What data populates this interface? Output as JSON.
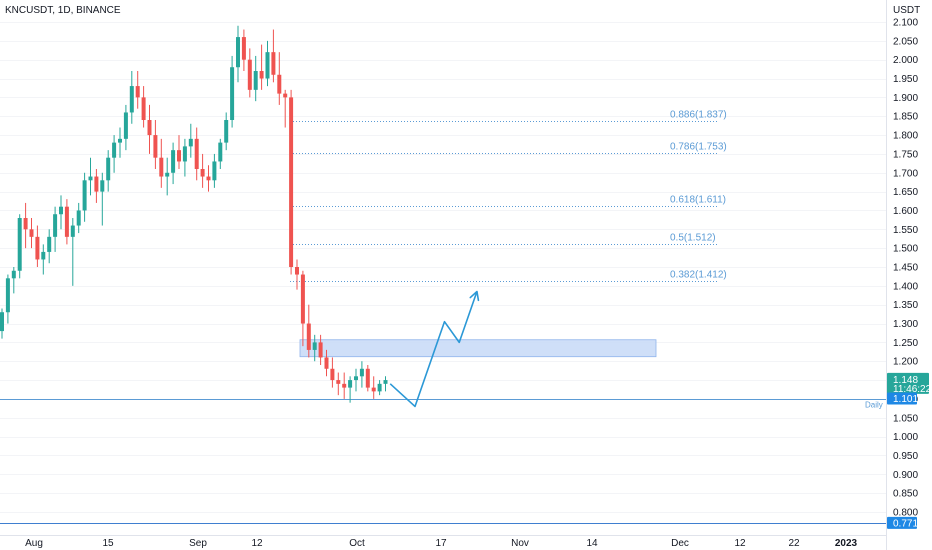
{
  "chart_data": {
    "type": "candlestick",
    "title": "KNCUSDT, 1D, BINANCE",
    "ylabel": "USDT",
    "ylim": [
      0.75,
      2.12
    ],
    "y_ticks": [
      "2.100",
      "2.050",
      "2.000",
      "1.950",
      "1.900",
      "1.850",
      "1.800",
      "1.750",
      "1.700",
      "1.650",
      "1.600",
      "1.550",
      "1.500",
      "1.450",
      "1.400",
      "1.350",
      "1.300",
      "1.250",
      "1.200",
      "1.150",
      "1.100",
      "1.050",
      "1.000",
      "0.950",
      "0.900",
      "0.850",
      "0.800"
    ],
    "x_ticks": [
      "Aug",
      "15",
      "Sep",
      "12",
      "Oct",
      "17",
      "Nov",
      "14",
      "Dec",
      "12",
      "22",
      "2023"
    ],
    "candles": [
      [
        1.28,
        1.34,
        1.26,
        1.33
      ],
      [
        1.33,
        1.43,
        1.3,
        1.42
      ],
      [
        1.42,
        1.45,
        1.38,
        1.44
      ],
      [
        1.44,
        1.59,
        1.42,
        1.58
      ],
      [
        1.58,
        1.62,
        1.5,
        1.55
      ],
      [
        1.55,
        1.58,
        1.5,
        1.53
      ],
      [
        1.53,
        1.56,
        1.45,
        1.47
      ],
      [
        1.47,
        1.51,
        1.43,
        1.49
      ],
      [
        1.49,
        1.55,
        1.46,
        1.53
      ],
      [
        1.53,
        1.61,
        1.49,
        1.59
      ],
      [
        1.59,
        1.64,
        1.55,
        1.61
      ],
      [
        1.61,
        1.63,
        1.51,
        1.53
      ],
      [
        1.53,
        1.58,
        1.4,
        1.56
      ],
      [
        1.56,
        1.62,
        1.54,
        1.6
      ],
      [
        1.6,
        1.7,
        1.57,
        1.68
      ],
      [
        1.68,
        1.74,
        1.64,
        1.69
      ],
      [
        1.69,
        1.71,
        1.62,
        1.65
      ],
      [
        1.65,
        1.7,
        1.56,
        1.68
      ],
      [
        1.68,
        1.76,
        1.65,
        1.74
      ],
      [
        1.74,
        1.8,
        1.7,
        1.78
      ],
      [
        1.78,
        1.82,
        1.74,
        1.79
      ],
      [
        1.79,
        1.88,
        1.76,
        1.86
      ],
      [
        1.86,
        1.97,
        1.83,
        1.93
      ],
      [
        1.93,
        1.97,
        1.87,
        1.9
      ],
      [
        1.9,
        1.93,
        1.82,
        1.84
      ],
      [
        1.84,
        1.88,
        1.75,
        1.8
      ],
      [
        1.8,
        1.84,
        1.71,
        1.74
      ],
      [
        1.74,
        1.79,
        1.66,
        1.69
      ],
      [
        1.69,
        1.74,
        1.64,
        1.7
      ],
      [
        1.7,
        1.78,
        1.67,
        1.76
      ],
      [
        1.76,
        1.8,
        1.71,
        1.73
      ],
      [
        1.73,
        1.79,
        1.69,
        1.77
      ],
      [
        1.77,
        1.83,
        1.74,
        1.79
      ],
      [
        1.79,
        1.82,
        1.68,
        1.71
      ],
      [
        1.71,
        1.75,
        1.66,
        1.69
      ],
      [
        1.69,
        1.72,
        1.65,
        1.68
      ],
      [
        1.68,
        1.75,
        1.66,
        1.73
      ],
      [
        1.73,
        1.79,
        1.71,
        1.78
      ],
      [
        1.78,
        1.86,
        1.76,
        1.84
      ],
      [
        1.84,
        2.01,
        1.82,
        1.98
      ],
      [
        1.98,
        2.09,
        1.94,
        2.06
      ],
      [
        2.06,
        2.08,
        1.97,
        2.0
      ],
      [
        2.0,
        2.03,
        1.9,
        1.92
      ],
      [
        1.92,
        2.01,
        1.89,
        1.97
      ],
      [
        1.97,
        2.04,
        1.92,
        1.95
      ],
      [
        1.95,
        2.05,
        1.93,
        2.02
      ],
      [
        2.02,
        2.08,
        1.94,
        1.96
      ],
      [
        1.96,
        2.02,
        1.88,
        1.91
      ],
      [
        1.91,
        1.92,
        1.82,
        1.9
      ],
      [
        1.9,
        1.92,
        1.43,
        1.45
      ],
      [
        1.45,
        1.47,
        1.39,
        1.43
      ],
      [
        1.43,
        1.44,
        1.24,
        1.3
      ],
      [
        1.3,
        1.35,
        1.21,
        1.23
      ],
      [
        1.23,
        1.27,
        1.2,
        1.25
      ],
      [
        1.25,
        1.27,
        1.19,
        1.21
      ],
      [
        1.21,
        1.23,
        1.16,
        1.18
      ],
      [
        1.18,
        1.21,
        1.13,
        1.15
      ],
      [
        1.15,
        1.17,
        1.11,
        1.14
      ],
      [
        1.14,
        1.17,
        1.1,
        1.13
      ],
      [
        1.13,
        1.16,
        1.09,
        1.15
      ],
      [
        1.15,
        1.18,
        1.12,
        1.16
      ],
      [
        1.16,
        1.2,
        1.13,
        1.18
      ],
      [
        1.18,
        1.19,
        1.12,
        1.13
      ],
      [
        1.13,
        1.16,
        1.1,
        1.12
      ],
      [
        1.12,
        1.15,
        1.11,
        1.14
      ],
      [
        1.14,
        1.16,
        1.12,
        1.15
      ]
    ],
    "fib_levels": [
      {
        "label": "0.886(1.837)",
        "value": 1.837
      },
      {
        "label": "0.786(1.753)",
        "value": 1.753
      },
      {
        "label": "0.618(1.611)",
        "value": 1.611
      },
      {
        "label": "0.5(1.512)",
        "value": 1.512
      },
      {
        "label": "0.382(1.412)",
        "value": 1.412
      }
    ],
    "zone": {
      "low": 1.212,
      "high": 1.257
    },
    "daily_line": {
      "label": "Daily",
      "value": 1.101
    },
    "bottom_line": {
      "value": 0.771
    },
    "projection": [
      {
        "bar": 65.8,
        "value": 1.14
      },
      {
        "bar": 70.0,
        "value": 1.08
      },
      {
        "bar": 75.0,
        "value": 1.305
      },
      {
        "bar": 77.5,
        "value": 1.25
      },
      {
        "bar": 80.5,
        "value": 1.385
      }
    ],
    "current_price": {
      "price": "1.148",
      "countdown": "11:46:22",
      "value": 1.148
    },
    "price_badges": [
      {
        "label": "1.101",
        "value": 1.101
      },
      {
        "label": "0.771",
        "value": 0.771
      }
    ],
    "colors": {
      "up": "#26a69a",
      "down": "#ef5350",
      "fib": "#5b9bd5",
      "zone": "#c7d9f7",
      "projection": "#2b98d6",
      "badge": "#1e88e5",
      "current": "#26a69a"
    }
  }
}
